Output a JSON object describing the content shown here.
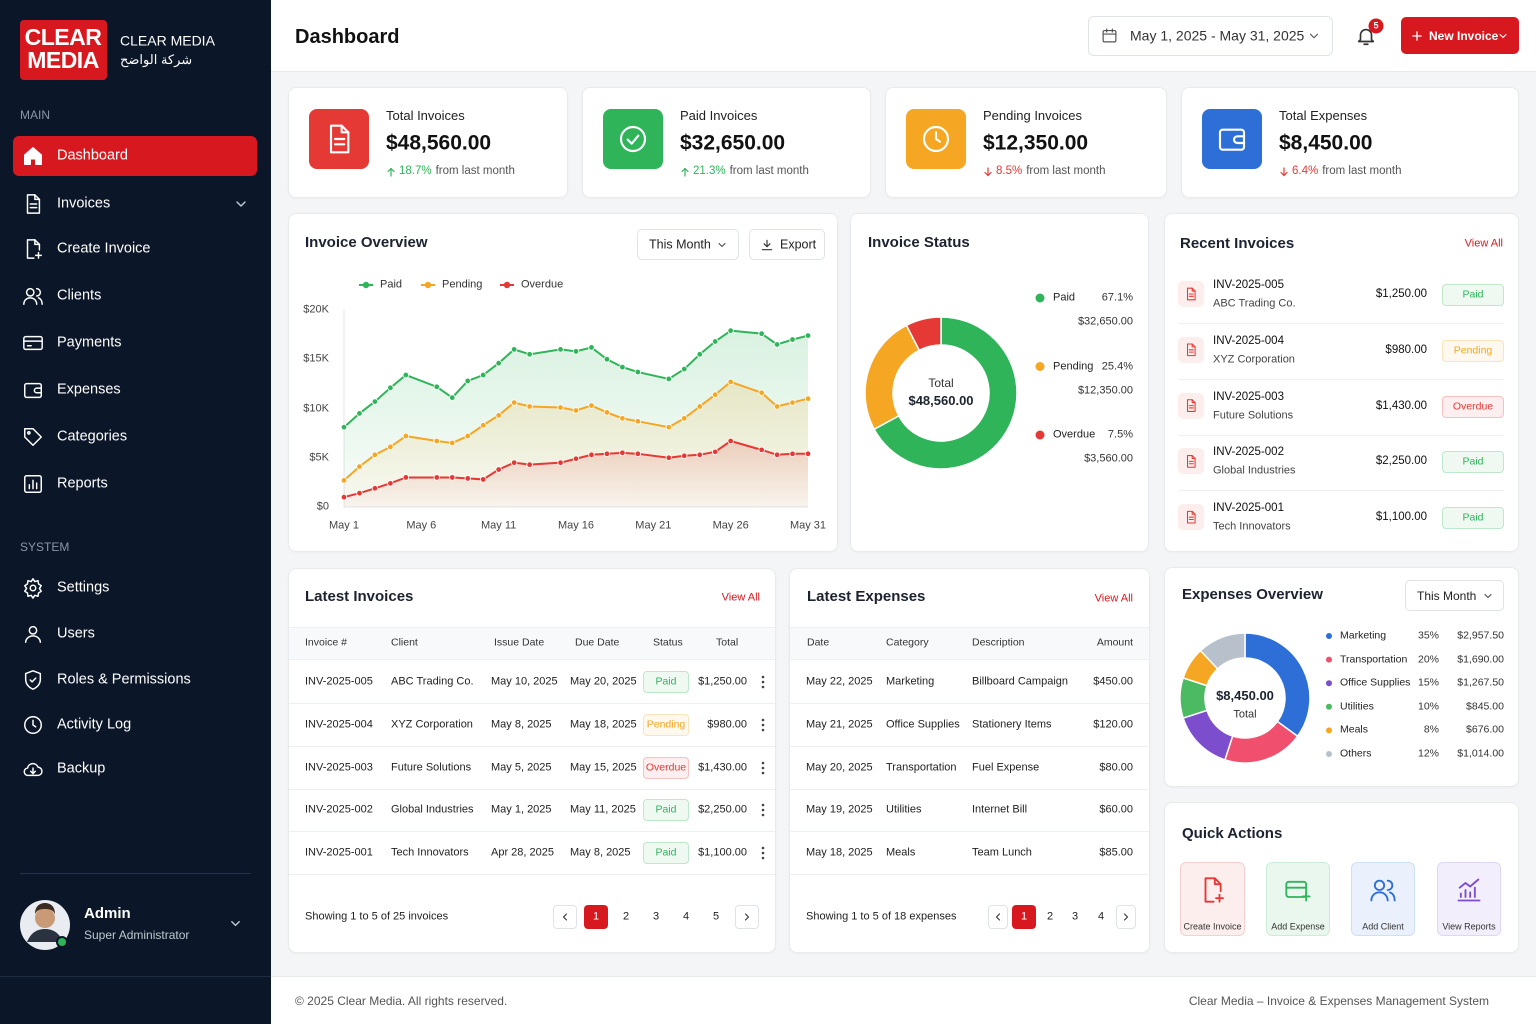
{
  "sidebar": {
    "logo": [
      "CLEAR",
      "MEDIA"
    ],
    "brand": "CLEAR MEDIA",
    "brand_ar": "شركة الواضح",
    "main_label": "MAIN",
    "main_items": [
      "Dashboard",
      "Invoices",
      "Create Invoice",
      "Clients",
      "Payments",
      "Expenses",
      "Categories",
      "Reports"
    ],
    "system_label": "SYSTEM",
    "system_items": [
      "Settings",
      "Users",
      "Roles & Permissions",
      "Activity Log",
      "Backup"
    ],
    "user": {
      "name": "Admin",
      "role": "Super Administrator"
    }
  },
  "header": {
    "title": "Dashboard",
    "date_range": "May 1, 2025 - May 31, 2025",
    "notifications": 5,
    "new_invoice": "New Invoice"
  },
  "stats": [
    {
      "label": "Total Invoices",
      "value": "$48,560.00",
      "change": "18.7%",
      "change_text": "from last month",
      "direction": "up",
      "color": "#e53935"
    },
    {
      "label": "Paid Invoices",
      "value": "$32,650.00",
      "change": "21.3%",
      "change_text": "from last month",
      "direction": "up",
      "color": "#2fb45a"
    },
    {
      "label": "Pending Invoices",
      "value": "$12,350.00",
      "change": "8.5%",
      "change_text": "from last month",
      "direction": "down",
      "color": "#f5a623"
    },
    {
      "label": "Total Expenses",
      "value": "$8,450.00",
      "change": "6.4%",
      "change_text": "from last month",
      "direction": "down",
      "color": "#2d6fd6"
    }
  ],
  "invoice_overview": {
    "title": "Invoice Overview",
    "filter": "This Month",
    "export": "Export",
    "chart": {
      "type": "line",
      "x": [
        1,
        2,
        3,
        4,
        5,
        7,
        8,
        9,
        10,
        11,
        12,
        13,
        15,
        16,
        17,
        18,
        19,
        20,
        22,
        23,
        24,
        25,
        26,
        28,
        29,
        30,
        31
      ],
      "series": [
        {
          "name": "Paid",
          "color": "#2fb45a",
          "values": [
            8100,
            9500,
            10700,
            12100,
            13400,
            12200,
            11100,
            12800,
            13400,
            14600,
            16000,
            15500,
            16000,
            15800,
            16200,
            15000,
            14200,
            13700,
            13000,
            14000,
            15500,
            16800,
            17900,
            17600,
            16500,
            17000,
            17400
          ]
        },
        {
          "name": "Pending",
          "color": "#f5a623",
          "values": [
            2700,
            4100,
            5300,
            6100,
            7200,
            6700,
            6500,
            7200,
            8300,
            9300,
            10600,
            10200,
            10100,
            9800,
            10300,
            9600,
            9000,
            8700,
            8100,
            9000,
            10200,
            11400,
            12700,
            11600,
            10200,
            10600,
            11000
          ]
        },
        {
          "name": "Overdue",
          "color": "#e53935",
          "values": [
            1000,
            1400,
            1900,
            2400,
            3000,
            3000,
            3000,
            2900,
            2800,
            3800,
            4500,
            4300,
            4500,
            4900,
            5300,
            5400,
            5500,
            5400,
            5000,
            5200,
            5300,
            5600,
            6700,
            5800,
            5300,
            5400,
            5400
          ]
        }
      ],
      "xlim": [
        1,
        31
      ],
      "xticks": [
        {
          "value": 1,
          "label": "May 1"
        },
        {
          "value": 6,
          "label": "May 6"
        },
        {
          "value": 11,
          "label": "May 11"
        },
        {
          "value": 16,
          "label": "May 16"
        },
        {
          "value": 21,
          "label": "May 21"
        },
        {
          "value": 26,
          "label": "May 26"
        },
        {
          "value": 31,
          "label": "May 31"
        }
      ],
      "ylim": [
        0,
        20000
      ],
      "yticks": [
        {
          "value": 0,
          "label": "$0"
        },
        {
          "value": 5000,
          "label": "$5K"
        },
        {
          "value": 10000,
          "label": "$10K"
        },
        {
          "value": 15000,
          "label": "$15K"
        },
        {
          "value": 20000,
          "label": "$20K"
        }
      ],
      "grid": false
    }
  },
  "invoice_status": {
    "title": "Invoice Status",
    "center_label": "Total",
    "center_value": "$48,560.00",
    "chart": {
      "type": "pie",
      "categories": [
        "Paid",
        "Pending",
        "Overdue"
      ],
      "values": [
        67.1,
        25.4,
        7.5
      ],
      "value_labels": [
        "67.1%",
        "25.4%",
        "7.5%"
      ],
      "colors": [
        "#2fb45a",
        "#f5a623",
        "#e53935"
      ],
      "amounts": [
        "$32,650.00",
        "$12,350.00",
        "$3,560.00"
      ]
    }
  },
  "recent_invoices": {
    "title": "Recent Invoices",
    "view_all": "View All",
    "items": [
      {
        "id": "INV-2025-005",
        "client": "ABC Trading Co.",
        "amount": "$1,250.00",
        "status": "Paid"
      },
      {
        "id": "INV-2025-004",
        "client": "XYZ Corporation",
        "amount": "$980.00",
        "status": "Pending"
      },
      {
        "id": "INV-2025-003",
        "client": "Future Solutions",
        "amount": "$1,430.00",
        "status": "Overdue"
      },
      {
        "id": "INV-2025-002",
        "client": "Global Industries",
        "amount": "$2,250.00",
        "status": "Paid"
      },
      {
        "id": "INV-2025-001",
        "client": "Tech Innovators",
        "amount": "$1,100.00",
        "status": "Paid"
      }
    ]
  },
  "latest_invoices": {
    "title": "Latest Invoices",
    "view_all": "View All",
    "columns": [
      "Invoice #",
      "Client",
      "Issue Date",
      "Due Date",
      "Status",
      "Total"
    ],
    "rows": [
      [
        "INV-2025-005",
        "ABC Trading Co.",
        "May 10, 2025",
        "May 20, 2025",
        "Paid",
        "$1,250.00"
      ],
      [
        "INV-2025-004",
        "XYZ Corporation",
        "May 8, 2025",
        "May 18, 2025",
        "Pending",
        "$980.00"
      ],
      [
        "INV-2025-003",
        "Future Solutions",
        "May 5, 2025",
        "May 15, 2025",
        "Overdue",
        "$1,430.00"
      ],
      [
        "INV-2025-002",
        "Global Industries",
        "May 1, 2025",
        "May 11, 2025",
        "Paid",
        "$2,250.00"
      ],
      [
        "INV-2025-001",
        "Tech Innovators",
        "Apr 28, 2025",
        "May 8, 2025",
        "Paid",
        "$1,100.00"
      ]
    ],
    "summary": "Showing 1 to 5 of 25 invoices",
    "pages": [
      1,
      2,
      3,
      4,
      5
    ],
    "current_page": 1
  },
  "latest_expenses": {
    "title": "Latest Expenses",
    "view_all": "View All",
    "columns": [
      "Date",
      "Category",
      "Description",
      "Amount"
    ],
    "rows": [
      [
        "May 22, 2025",
        "Marketing",
        "Billboard Campaign",
        "$450.00"
      ],
      [
        "May 21, 2025",
        "Office Supplies",
        "Stationery Items",
        "$120.00"
      ],
      [
        "May 20, 2025",
        "Transportation",
        "Fuel Expense",
        "$80.00"
      ],
      [
        "May 19, 2025",
        "Utilities",
        "Internet Bill",
        "$60.00"
      ],
      [
        "May 18, 2025",
        "Meals",
        "Team Lunch",
        "$85.00"
      ]
    ],
    "summary": "Showing 1 to 5 of 18 expenses",
    "pages": [
      1,
      2,
      3,
      4
    ],
    "current_page": 1
  },
  "expenses_overview": {
    "title": "Expenses Overview",
    "filter": "This Month",
    "center_value": "$8,450.00",
    "center_label": "Total",
    "chart": {
      "type": "pie",
      "categories": [
        "Marketing",
        "Transportation",
        "Office Supplies",
        "Utilities",
        "Meals",
        "Others"
      ],
      "values": [
        35,
        20,
        15,
        10,
        8,
        12
      ],
      "value_labels": [
        "35%",
        "20%",
        "15%",
        "10%",
        "8%",
        "12%"
      ],
      "colors": [
        "#2d6fd6",
        "#f0506e",
        "#7c4dcc",
        "#4cb963",
        "#f5a623",
        "#b8c0cc"
      ],
      "amounts": [
        "$2,957.50",
        "$1,690.00",
        "$1,267.50",
        "$845.00",
        "$676.00",
        "$1,014.00"
      ]
    }
  },
  "quick_actions": {
    "title": "Quick Actions",
    "items": [
      "Create Invoice",
      "Add Expense",
      "Add Client",
      "View Reports"
    ]
  },
  "footer": {
    "copyright": "© 2025 Clear Media. All rights reserved.",
    "system": "Clear Media – Invoice & Expenses Management System"
  }
}
